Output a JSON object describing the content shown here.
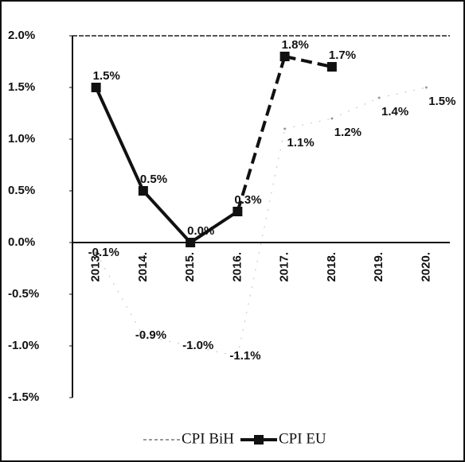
{
  "chart_data": {
    "type": "line",
    "categories": [
      "2013.",
      "2014.",
      "2015.",
      "2016.",
      "2017.",
      "2018.",
      "2019.",
      "2020."
    ],
    "series": [
      {
        "name": "CPI BiH",
        "color": "#9a9a9a",
        "values": [
          -0.1,
          -0.9,
          -1.0,
          -1.1,
          1.1,
          1.2,
          1.4,
          1.5
        ],
        "value_labels": [
          "-0.1%",
          "-0.9%",
          "-1.0%",
          "-1.1%",
          "1.1%",
          "1.2%",
          "1.4%",
          "1.5%"
        ]
      },
      {
        "name": "CPI EU",
        "color": "#111111",
        "values": [
          1.5,
          0.5,
          0.0,
          0.3,
          1.8,
          1.7,
          null,
          null
        ],
        "value_labels": [
          "1.5%",
          "0.5%",
          "0.0%",
          "0.3%",
          "1.8%",
          "1.7%",
          null,
          null
        ],
        "dashed_from": "2016."
      }
    ],
    "ylim": [
      -1.5,
      2.0
    ],
    "yticks": [
      {
        "value": -1.5,
        "label": "-1.5%"
      },
      {
        "value": -1.0,
        "label": "-1.0%"
      },
      {
        "value": -0.5,
        "label": "-0.5%"
      },
      {
        "value": 0,
        "label": "0.0%"
      },
      {
        "value": 0.5,
        "label": "0.5%"
      },
      {
        "value": 1.0,
        "label": "1.0%"
      },
      {
        "value": 1.5,
        "label": "1.5%"
      },
      {
        "value": 2.0,
        "label": "2.0%"
      }
    ],
    "legend": "bottom"
  }
}
